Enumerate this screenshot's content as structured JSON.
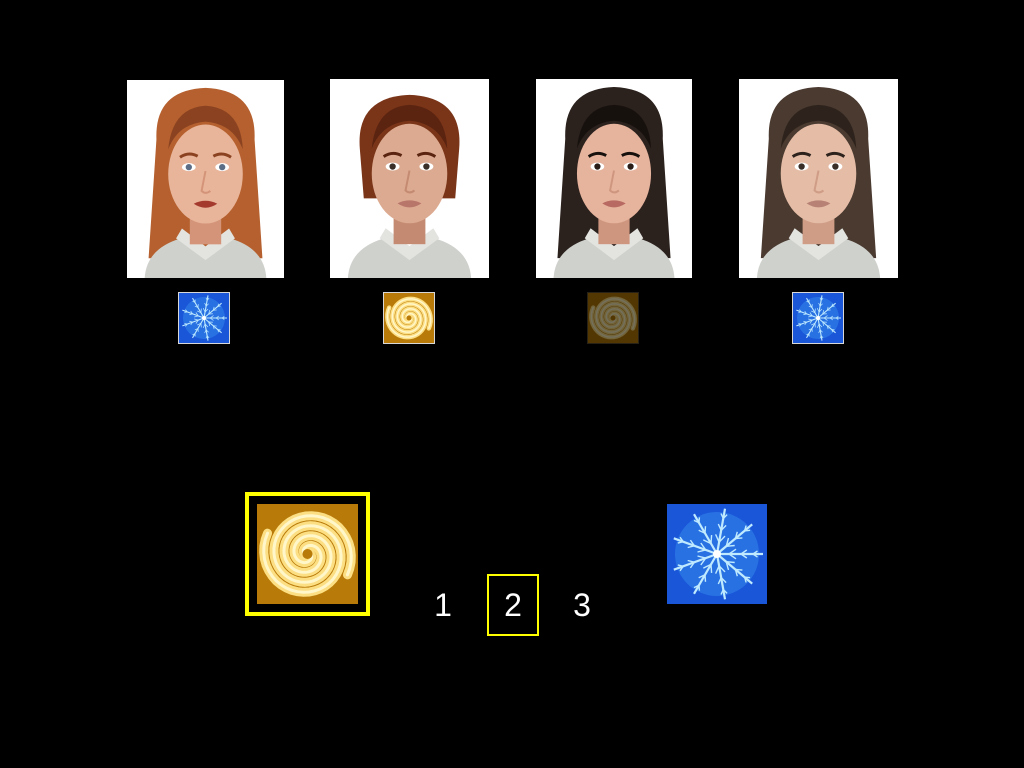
{
  "faces": [
    {
      "id": "face-1",
      "hair": "#b5602e",
      "hair_dark": "#8a4220",
      "skin": "#e8b59a",
      "skin_shade": "#d49479",
      "lips": "#a43a2e",
      "eyes": "#5b6e86",
      "long_hair": true
    },
    {
      "id": "face-2",
      "hair": "#7a3418",
      "hair_dark": "#5a2410",
      "skin": "#dcaa90",
      "skin_shade": "#c48b72",
      "lips": "#b8756a",
      "eyes": "#3b2f2a",
      "long_hair": false
    },
    {
      "id": "face-3",
      "hair": "#2b211d",
      "hair_dark": "#17110e",
      "skin": "#e6b39d",
      "skin_shade": "#cf967f",
      "lips": "#b86a62",
      "eyes": "#2a1d18",
      "long_hair": true
    },
    {
      "id": "face-4",
      "hair": "#4a3a30",
      "hair_dark": "#2e231c",
      "skin": "#e5bca6",
      "skin_shade": "#cf9c86",
      "lips": "#b78275",
      "eyes": "#3a2e28",
      "long_hair": true
    }
  ],
  "thumbnails": [
    {
      "icon": "snowflake-fractal-icon",
      "dimmed": false
    },
    {
      "icon": "spiral-fractal-icon",
      "dimmed": false
    },
    {
      "icon": "spiral-fractal-icon",
      "dimmed": true
    },
    {
      "icon": "snowflake-fractal-icon",
      "dimmed": false
    }
  ],
  "choices": {
    "left": {
      "icon": "spiral-fractal-icon",
      "selected": true
    },
    "right": {
      "icon": "snowflake-fractal-icon",
      "selected": false
    }
  },
  "rating": {
    "options": [
      "1",
      "2",
      "3"
    ],
    "selected": "2"
  },
  "colors": {
    "background": "#000000",
    "highlight": "#ffff00",
    "text": "#ffffff",
    "snowflake_bg": "#1a56d8",
    "snowflake_fg": "#bfeaff",
    "spiral_bg": "#b87a08",
    "spiral_fg": "#ffe48a"
  }
}
